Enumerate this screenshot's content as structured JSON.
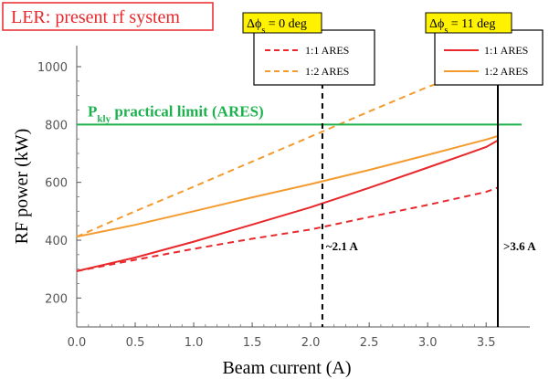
{
  "chart_data": {
    "type": "line",
    "title": "LER: present rf system",
    "xlabel": "Beam current (A)",
    "ylabel": "RF power (kW)",
    "xlim": [
      0,
      3.7
    ],
    "ylim": [
      100,
      1000
    ],
    "xticks": [
      "0.0",
      "0.5",
      "1.0",
      "1.5",
      "2.0",
      "2.5",
      "3.0",
      "3.5"
    ],
    "yticks": [
      "200",
      "400",
      "600",
      "800",
      "1000"
    ],
    "x": [
      0,
      0.5,
      1.0,
      1.5,
      2.0,
      2.5,
      3.0,
      3.5,
      3.6
    ],
    "series": [
      {
        "legend": "dphi0",
        "name": "1:1 ARES",
        "color": "#e8282b",
        "dashed": true,
        "values": [
          293,
          332,
          370,
          405,
          437,
          480,
          522,
          567,
          582
        ]
      },
      {
        "legend": "dphi0",
        "name": "1:2 ARES",
        "color": "#f49b2f",
        "dashed": true,
        "values": [
          412,
          500,
          585,
          672,
          758,
          845,
          930,
          1000,
          null
        ]
      },
      {
        "legend": "dphi11",
        "name": "1:1 ARES",
        "color": "#e8282b",
        "dashed": false,
        "values": [
          293,
          340,
          395,
          454,
          514,
          581,
          651,
          722,
          745
        ]
      },
      {
        "legend": "dphi11",
        "name": "1:2 ARES",
        "color": "#f49b2f",
        "dashed": false,
        "values": [
          412,
          453,
          500,
          548,
          594,
          643,
          695,
          748,
          760
        ]
      }
    ],
    "annotations": {
      "limit": {
        "y": 800,
        "label": "P",
        "sub": "kly",
        "suffix": " practical limit (ARES)",
        "color": "#1db24e"
      },
      "vline_a": {
        "x": 2.1,
        "label": "~2.1 A"
      },
      "vline_b": {
        "x": 3.6,
        "label": ">3.6 A"
      }
    },
    "legends": {
      "dphi0": {
        "header": "Δϕ",
        "sub": "s",
        "suffix": " = 0 deg"
      },
      "dphi11": {
        "header": "Δϕ",
        "sub": "s",
        "suffix": " = 11 deg"
      }
    },
    "grid": false
  },
  "colors": {
    "title": "#e8282b",
    "highlight": "#fff200"
  }
}
